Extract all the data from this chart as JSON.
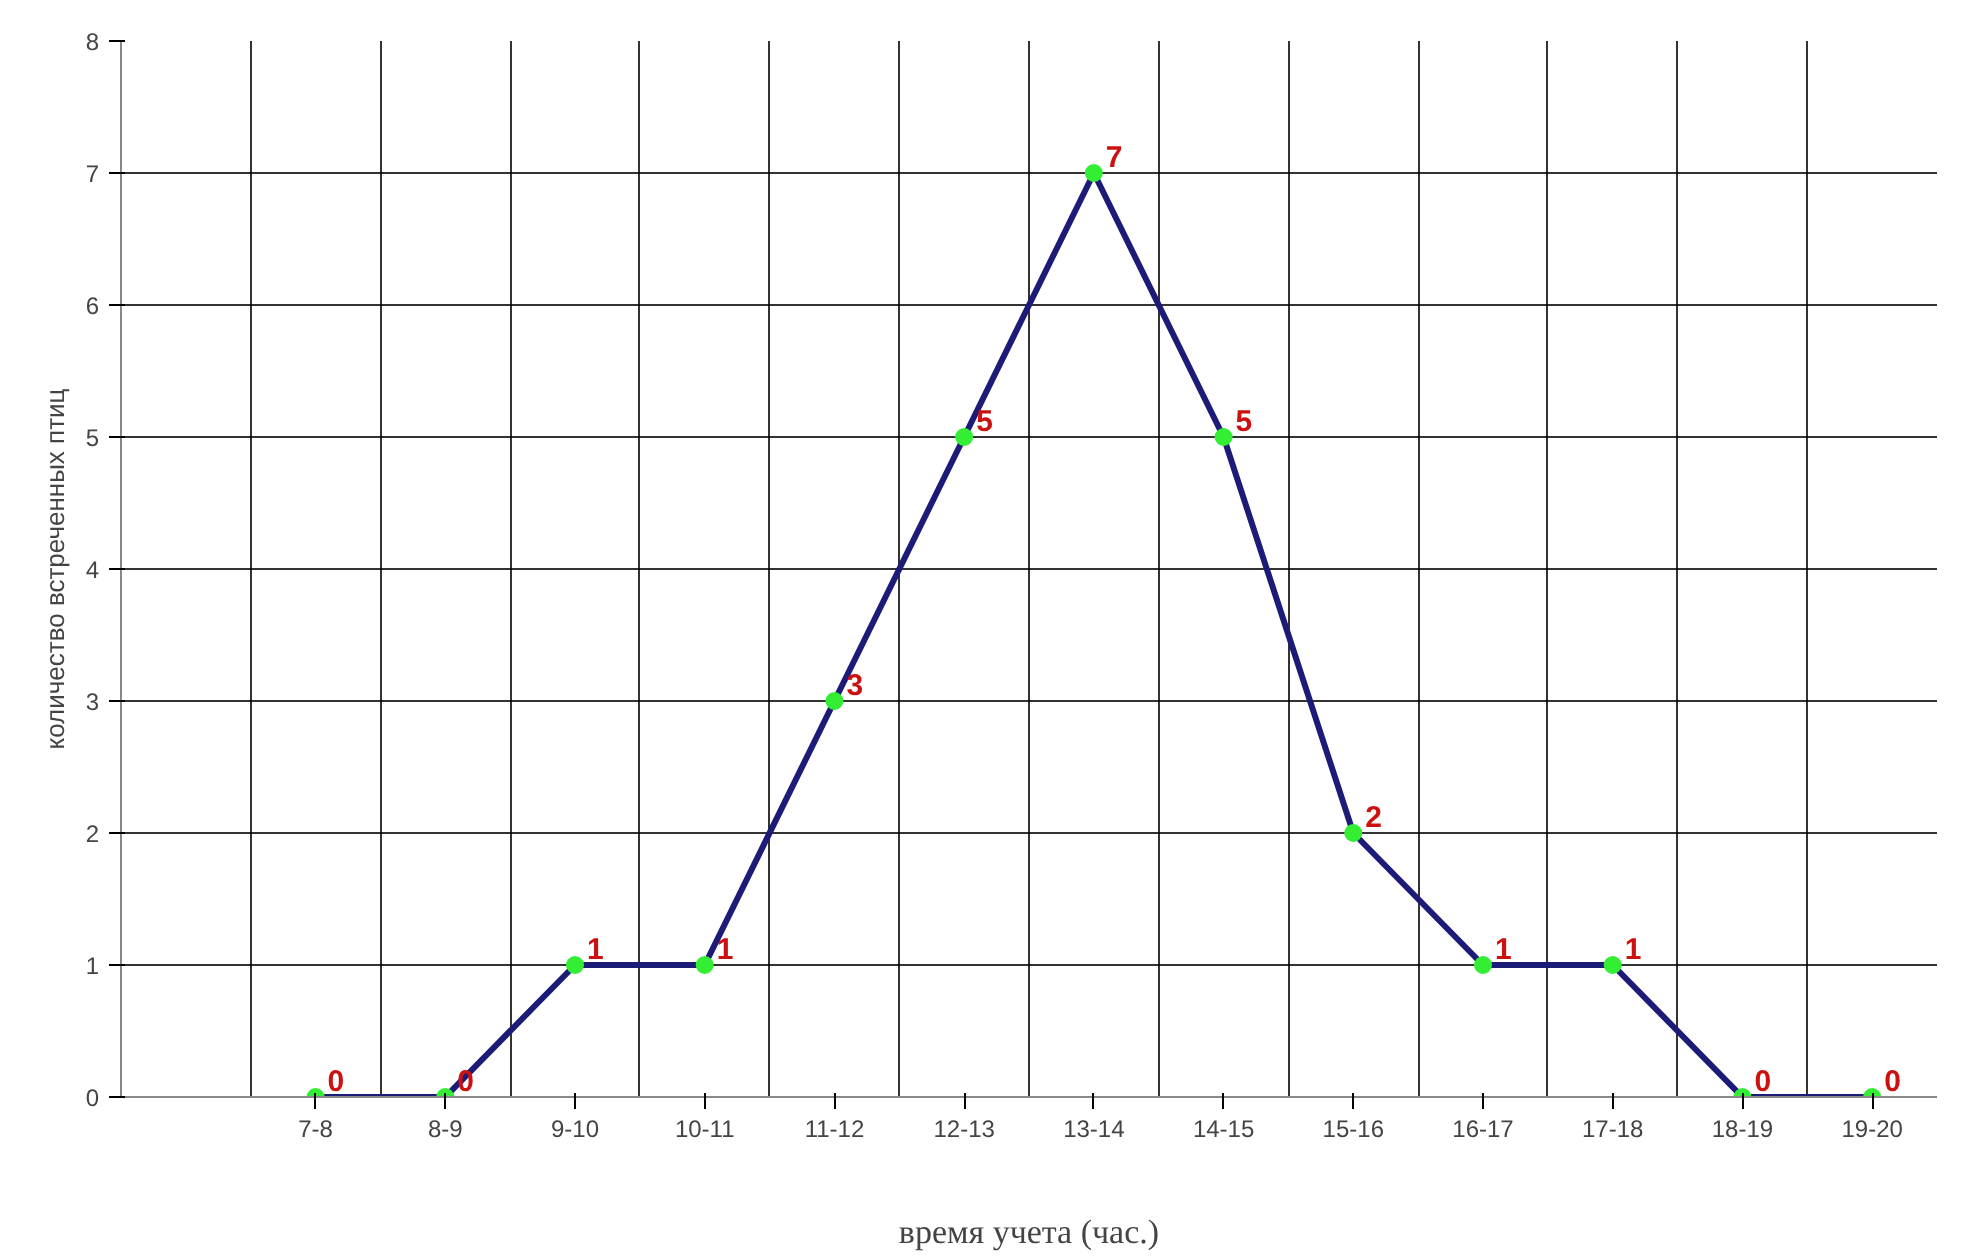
{
  "chart_data": {
    "type": "line",
    "xlabel": "время учета (час.)",
    "ylabel": "количество встреченных птиц",
    "categories": [
      null,
      "7-8",
      "8-9",
      "9-10",
      "10-11",
      "11-12",
      "12-13",
      "13-14",
      "14-15",
      "15-16",
      "16-17",
      "17-18",
      "18-19",
      "19-20"
    ],
    "series": [
      {
        "color": "#1c1c78",
        "values": [
          null,
          0,
          0,
          1,
          1,
          3,
          5,
          7,
          5,
          2,
          1,
          1,
          0,
          0
        ]
      }
    ],
    "ylim": [
      0,
      8
    ],
    "yticks": [
      0,
      1,
      2,
      3,
      4,
      5,
      6,
      7,
      8
    ],
    "grid": true,
    "marker": "circle",
    "data_labels": true
  }
}
